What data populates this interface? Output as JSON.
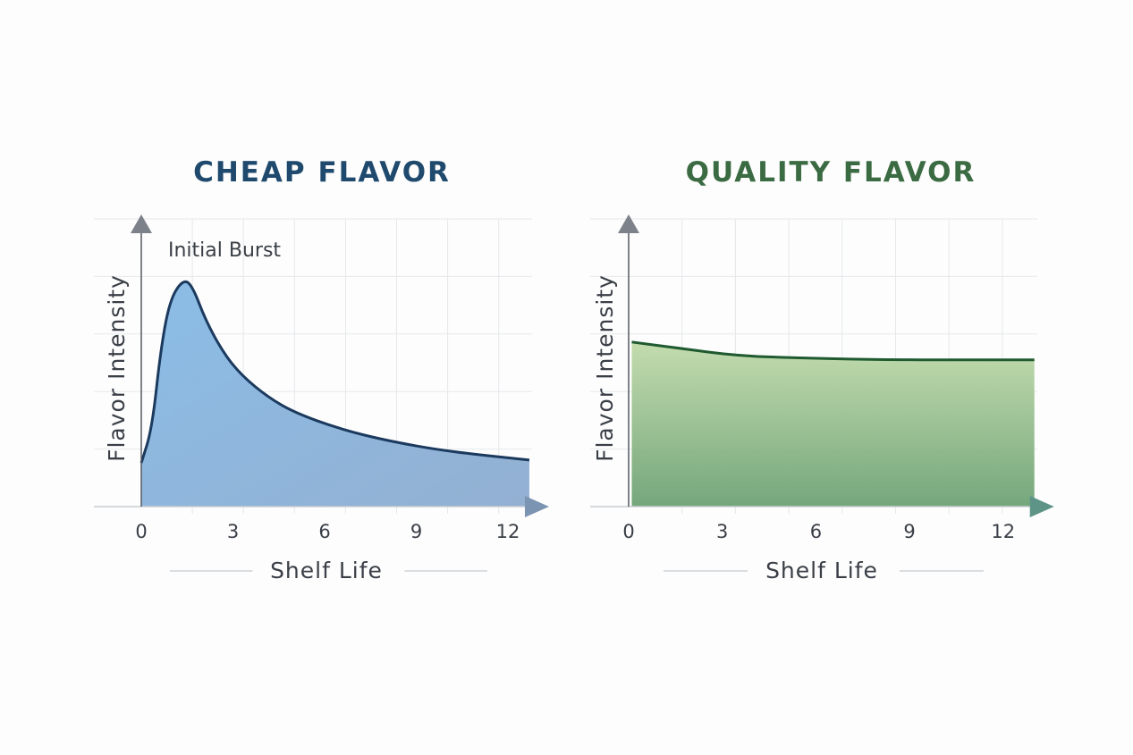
{
  "chart_data": [
    {
      "type": "area",
      "title": "CHEAP FLAVOR",
      "xlabel": "Shelf Life",
      "ylabel": "Flavor Intensity",
      "xticks": [
        "0",
        "3",
        "6",
        "9",
        "12"
      ],
      "xlim": [
        0,
        12.7
      ],
      "ylim": [
        0,
        5
      ],
      "grid": true,
      "annotation": "Initial Burst",
      "color": "#1b3a5e",
      "fill_color": "#86b6e0",
      "title_color": "#1f4a6e",
      "x": [
        0,
        0.35,
        0.64,
        0.94,
        1.37,
        1.67,
        2.11,
        2.69,
        3.28,
        4.15,
        5.03,
        6.5,
        8.0,
        10.0,
        12.7
      ],
      "y": [
        0.76,
        1.35,
        2.75,
        3.6,
        3.95,
        3.84,
        3.23,
        2.67,
        2.28,
        1.9,
        1.63,
        1.35,
        1.15,
        0.96,
        0.81
      ]
    },
    {
      "type": "area",
      "title": "QUALITY FLAVOR",
      "xlabel": "Shelf Life",
      "ylabel": "Flavor Intensity",
      "xticks": [
        "0",
        "3",
        "6",
        "9",
        "12"
      ],
      "xlim": [
        0,
        13
      ],
      "ylim": [
        0,
        5
      ],
      "grid": true,
      "color": "#1f5a30",
      "fill_color": "#a9cf94",
      "title_color": "#3b6b42",
      "x": [
        0.1,
        1.65,
        3.5,
        5.64,
        8.5,
        13
      ],
      "y": [
        2.86,
        2.75,
        2.62,
        2.58,
        2.55,
        2.55
      ]
    }
  ]
}
